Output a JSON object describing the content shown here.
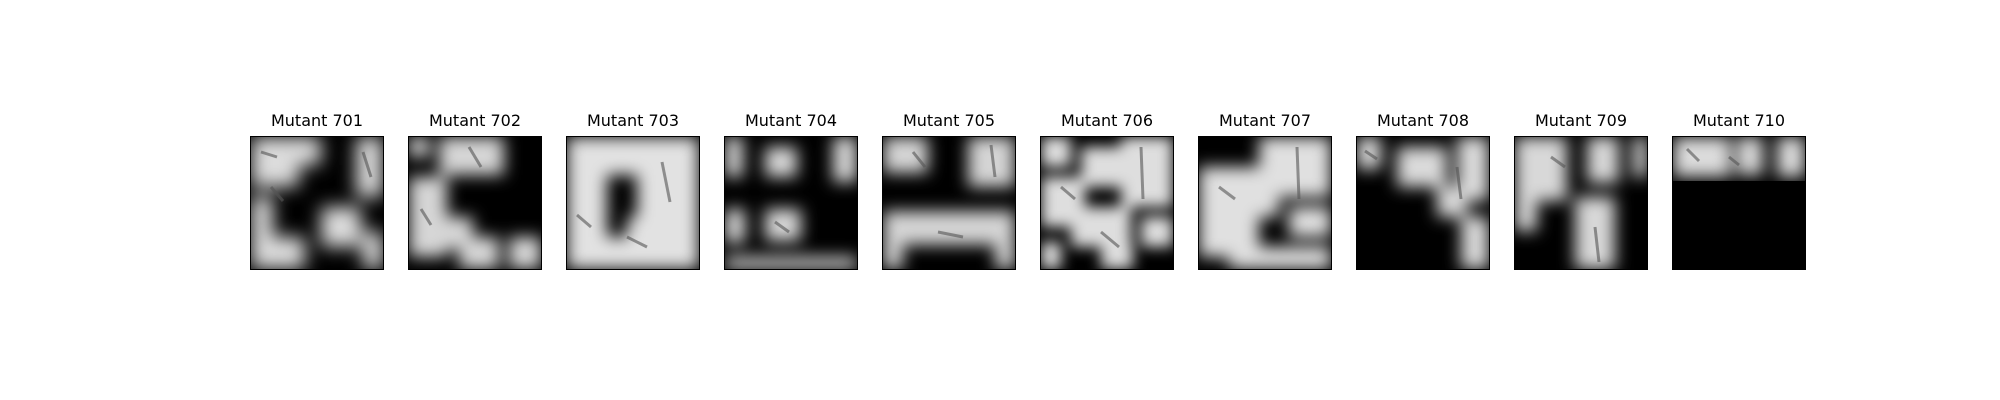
{
  "panels": [
    {
      "title": "Mutant 701",
      "mask_icon": "mask-blobs-pattern-701"
    },
    {
      "title": "Mutant 702",
      "mask_icon": "mask-blobs-pattern-702"
    },
    {
      "title": "Mutant 703",
      "mask_icon": "mask-blobs-pattern-703"
    },
    {
      "title": "Mutant 704",
      "mask_icon": "mask-blobs-pattern-704"
    },
    {
      "title": "Mutant 705",
      "mask_icon": "mask-blobs-pattern-705"
    },
    {
      "title": "Mutant 706",
      "mask_icon": "mask-blobs-pattern-706"
    },
    {
      "title": "Mutant 707",
      "mask_icon": "mask-blobs-pattern-707"
    },
    {
      "title": "Mutant 708",
      "mask_icon": "mask-blobs-pattern-708"
    },
    {
      "title": "Mutant 709",
      "mask_icon": "mask-blobs-pattern-709"
    },
    {
      "title": "Mutant 710",
      "mask_icon": "mask-blobs-pattern-710"
    }
  ],
  "colors": {
    "background": "#ffffff",
    "image_dark": "#000000",
    "image_light": "#e8e8e8",
    "title_text": "#000000"
  }
}
